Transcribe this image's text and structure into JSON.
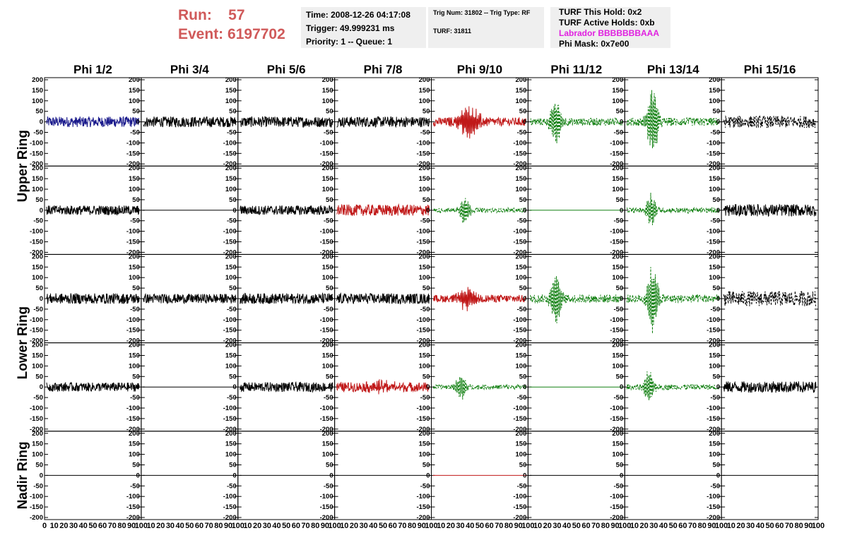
{
  "header": {
    "run_label": "Run:",
    "run_value": "57",
    "event_label": "Event:",
    "event_value": "6197702",
    "time": "Time: 2008-12-26 04:17:08",
    "trigger": "Trigger: 49.999231 ms",
    "priority": "Priority: 1 -- Queue: 1",
    "trig_num": "Trig Num: 31802 -- Trig Type: RF",
    "turf": "TURF: 31811",
    "turf_hold": "TURF This Hold: 0x2",
    "turf_active": "TURF Active Holds: 0xb",
    "labrador": "Labrador BBBBBBBAAA",
    "phi_mask": "Phi Mask: 0x7e00"
  },
  "colors": {
    "run_text": "#d05a5a",
    "labrador_text": "#e020e0",
    "trace_black": "#000000",
    "trace_blue": "#1a1a8c",
    "trace_red": "#c01818",
    "trace_green": "#128012",
    "panel_bg": "#efefef"
  },
  "chart_data": {
    "type": "line",
    "column_titles": [
      "Phi 1/2",
      "Phi 3/4",
      "Phi 5/6",
      "Phi 7/8",
      "Phi 9/10",
      "Phi 11/12",
      "Phi 13/14",
      "Phi 15/16"
    ],
    "row_labels": [
      {
        "text": "Upper Ring",
        "rows": [
          0,
          1
        ]
      },
      {
        "text": "Lower Ring",
        "rows": [
          2,
          3
        ]
      },
      {
        "text": "Nadir Ring",
        "rows": [
          4
        ]
      }
    ],
    "ylim": [
      -210,
      210
    ],
    "xlim": [
      0,
      100
    ],
    "yticks": [
      -200,
      -150,
      -100,
      -50,
      0,
      50,
      100,
      150,
      200
    ],
    "xtick_labels": [
      [
        "0",
        "10",
        "20",
        "30",
        "40",
        "50",
        "60",
        "70",
        "80",
        "90",
        "100"
      ],
      [
        "10",
        "20",
        "30",
        "40",
        "50",
        "60",
        "70",
        "80",
        "90",
        "100"
      ],
      [
        "10",
        "20",
        "30",
        "40",
        "50",
        "60",
        "70",
        "80",
        "90",
        "100"
      ],
      [
        "10",
        "20",
        "30",
        "40",
        "50",
        "60",
        "70",
        "80",
        "90",
        "100"
      ],
      [
        "10",
        "20",
        "30",
        "40",
        "50",
        "60",
        "70",
        "80",
        "90",
        "100"
      ],
      [
        "10",
        "20",
        "30",
        "40",
        "50",
        "60",
        "70",
        "80",
        "90",
        "100"
      ],
      [
        "10",
        "20",
        "30",
        "40",
        "50",
        "60",
        "70",
        "80",
        "90",
        "100"
      ],
      [
        "10",
        "20",
        "30",
        "40",
        "50",
        "60",
        "70",
        "80",
        "90",
        "100"
      ]
    ],
    "panels": [
      [
        {
          "color": "blue",
          "style": "solid",
          "amp": 28,
          "burst": 0
        },
        {
          "color": "black",
          "style": "solid",
          "amp": 28,
          "burst": 0
        },
        {
          "color": "black",
          "style": "solid",
          "amp": 28,
          "burst": 0
        },
        {
          "color": "black",
          "style": "solid",
          "amp": 28,
          "burst": 0
        },
        {
          "color": "red",
          "style": "solid",
          "amp": 22,
          "burst": 80,
          "center": 38,
          "width": 12
        },
        {
          "color": "green",
          "style": "dashed",
          "amp": 20,
          "burst": 130,
          "center": 28,
          "width": 6
        },
        {
          "color": "green",
          "style": "dashed",
          "amp": 22,
          "burst": 180,
          "center": 28,
          "width": 6
        },
        {
          "color": "black",
          "style": "dashed",
          "amp": 32,
          "burst": 0
        }
      ],
      [
        {
          "color": "black",
          "style": "solid",
          "amp": 25,
          "burst": 0
        },
        {
          "color": "black",
          "style": "flat"
        },
        {
          "color": "black",
          "style": "solid",
          "amp": 25,
          "burst": 0
        },
        {
          "color": "red",
          "style": "solid",
          "amp": 30,
          "burst": 0
        },
        {
          "color": "green",
          "style": "dashed",
          "amp": 12,
          "burst": 70,
          "center": 34,
          "width": 6
        },
        {
          "color": "green",
          "style": "flat"
        },
        {
          "color": "green",
          "style": "dashed",
          "amp": 14,
          "burst": 80,
          "center": 26,
          "width": 6
        },
        {
          "color": "black",
          "style": "solid",
          "amp": 32,
          "burst": 0
        }
      ],
      [
        {
          "color": "black",
          "style": "solid",
          "amp": 28,
          "burst": 0
        },
        {
          "color": "black",
          "style": "solid",
          "amp": 25,
          "burst": 0
        },
        {
          "color": "black",
          "style": "solid",
          "amp": 28,
          "burst": 0
        },
        {
          "color": "black",
          "style": "solid",
          "amp": 28,
          "burst": 0
        },
        {
          "color": "red",
          "style": "solid",
          "amp": 20,
          "burst": 50,
          "center": 36,
          "width": 10
        },
        {
          "color": "green",
          "style": "dashed",
          "amp": 22,
          "burst": 140,
          "center": 28,
          "width": 6
        },
        {
          "color": "green",
          "style": "dashed",
          "amp": 22,
          "burst": 170,
          "center": 28,
          "width": 6
        },
        {
          "color": "black",
          "style": "dashed",
          "amp": 40,
          "burst": 0
        }
      ],
      [
        {
          "color": "black",
          "style": "solid",
          "amp": 24,
          "burst": 0
        },
        {
          "color": "black",
          "style": "flat"
        },
        {
          "color": "black",
          "style": "solid",
          "amp": 25,
          "burst": 0
        },
        {
          "color": "red",
          "style": "solid",
          "amp": 25,
          "burst": 20,
          "center": 50,
          "width": 15
        },
        {
          "color": "green",
          "style": "dashed",
          "amp": 12,
          "burst": 70,
          "center": 30,
          "width": 6
        },
        {
          "color": "green",
          "style": "flat"
        },
        {
          "color": "green",
          "style": "dashed",
          "amp": 14,
          "burst": 80,
          "center": 24,
          "width": 6
        },
        {
          "color": "black",
          "style": "solid",
          "amp": 30,
          "burst": 0
        }
      ],
      [
        {
          "color": "black",
          "style": "flat"
        },
        {
          "color": "black",
          "style": "flat"
        },
        {
          "color": "black",
          "style": "flat"
        },
        {
          "color": "black",
          "style": "flat"
        },
        {
          "color": "red",
          "style": "flat"
        },
        {
          "color": "black",
          "style": "flat"
        },
        {
          "color": "black",
          "style": "flat"
        },
        {
          "color": "black",
          "style": "flat"
        }
      ]
    ]
  }
}
